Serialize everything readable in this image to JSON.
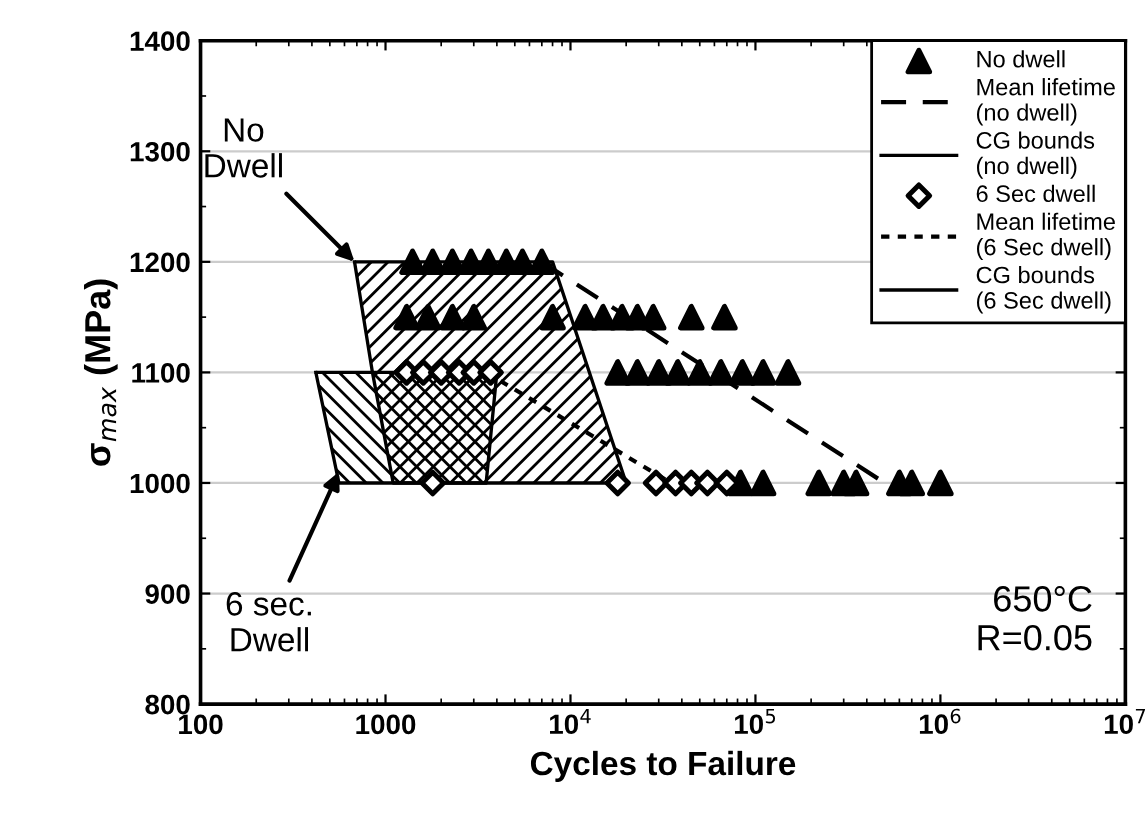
{
  "chart_data": {
    "type": "scatter",
    "xlabel": "Cycles to Failure",
    "ylabel": "σ$_{max}$ (MPa)",
    "log": "x",
    "xlim": [
      100,
      10000000
    ],
    "ylim": [
      800,
      1400
    ],
    "xticks": [
      100,
      1000,
      {
        "value": 10000,
        "label": "10$^{4}$"
      },
      {
        "value": 100000,
        "label": "10$^{5}$"
      },
      {
        "value": 1000000,
        "label": "10$^{6}$"
      },
      {
        "value": 10000000,
        "label": "10$^{7}$"
      }
    ],
    "yticks": [
      800,
      900,
      1000,
      1100,
      1200,
      1300,
      1400
    ],
    "grid": "y",
    "legend": "top right",
    "series": [
      {
        "name": "No dwell",
        "marker": "triangle",
        "color": "#000000",
        "x": [
          1400,
          1800,
          2300,
          2900,
          3600,
          4500,
          5500,
          7000,
          1300,
          1700,
          2300,
          3000,
          8000,
          12000,
          15000,
          19000,
          23000,
          28000,
          45000,
          68000,
          18000,
          23000,
          30000,
          38000,
          50000,
          65000,
          85000,
          110000,
          150000,
          83000,
          110000,
          220000,
          300000,
          350000,
          600000,
          700000,
          1000000
        ],
        "values": [
          1200,
          1200,
          1200,
          1200,
          1200,
          1200,
          1200,
          1200,
          1150,
          1150,
          1150,
          1150,
          1150,
          1150,
          1150,
          1150,
          1150,
          1150,
          1150,
          1150,
          1100,
          1100,
          1100,
          1100,
          1100,
          1100,
          1100,
          1100,
          1100,
          1000,
          1000,
          1000,
          1000,
          1000,
          1000,
          1000,
          1000
        ]
      },
      {
        "name": "Mean lifetime\n(no dwell)",
        "type": "line",
        "line_style": "dashed",
        "color": "#000000",
        "x": [
          7000,
          500000
        ],
        "values": [
          1200,
          1000
        ]
      },
      {
        "name": "CG bounds\n(no dwell)",
        "type": "area",
        "line_style": "solid",
        "color": "#000000",
        "x": [
          680,
          8000,
          20000,
          1100,
          850,
          680
        ],
        "values": [
          1200,
          1200,
          1000,
          1000,
          1100,
          1200
        ]
      },
      {
        "name": "6 Sec dwell",
        "marker": "diamond",
        "color": "#000000",
        "x": [
          1300,
          1600,
          2000,
          2500,
          3000,
          3700,
          1800,
          18000,
          29000,
          37000,
          45000,
          55000,
          70000
        ],
        "values": [
          1100,
          1100,
          1100,
          1100,
          1100,
          1100,
          1000,
          1000,
          1000,
          1000,
          1000,
          1000,
          1000
        ]
      },
      {
        "name": "Mean lifetime\n(6 Sec dwell)",
        "type": "line",
        "line_style": "dotted",
        "color": "#000000",
        "x": [
          3500,
          35000
        ],
        "values": [
          1100,
          1000
        ]
      },
      {
        "name": "CG bounds\n(6 Sec dwell)",
        "type": "area",
        "line_style": "solid",
        "color": "#000000",
        "x": [
          420,
          4000,
          3500,
          560,
          420
        ],
        "values": [
          1100,
          1100,
          1000,
          1000,
          1100
        ]
      }
    ],
    "annotations": [
      {
        "text": "No\nDwell",
        "x": 680,
        "y": 1200
      },
      {
        "text": "6 sec.\nDwell",
        "x": 560,
        "y": 1010
      },
      "650°C\nR=0.05"
    ]
  }
}
